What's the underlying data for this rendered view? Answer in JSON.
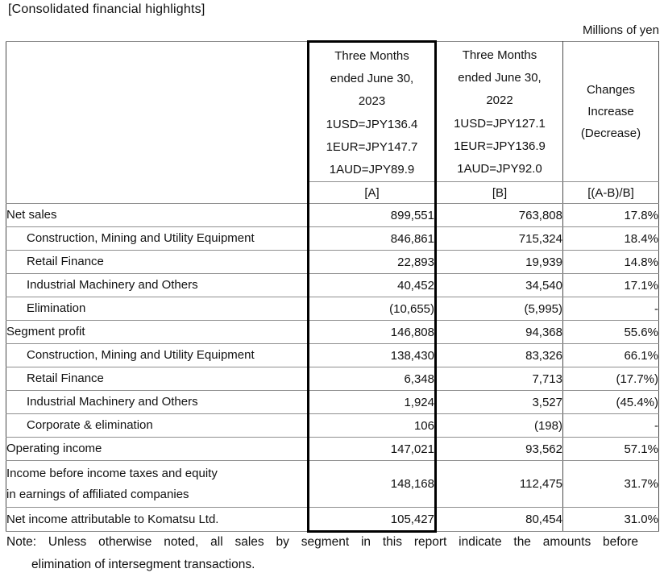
{
  "page": {
    "title": "[Consolidated financial highlights]",
    "unit_label": "Millions of yen"
  },
  "table": {
    "header": {
      "period_a": {
        "lines": [
          "Three Months",
          "ended June 30,",
          "2023",
          "1USD=JPY136.4",
          "1EUR=JPY147.7",
          "1AUD=JPY89.9"
        ],
        "tag": "[A]"
      },
      "period_b": {
        "lines": [
          "Three Months",
          "ended June 30,",
          "2022",
          "1USD=JPY127.1",
          "1EUR=JPY136.9",
          "1AUD=JPY92.0"
        ],
        "tag": "[B]"
      },
      "changes": {
        "lines": [
          "Changes",
          "Increase",
          "(Decrease)"
        ],
        "tag": "[(A-B)/B]"
      }
    },
    "rows": [
      {
        "label": "Net sales",
        "indent": false,
        "two_line": false,
        "a": "899,551",
        "b": "763,808",
        "change": "17.8%"
      },
      {
        "label": "Construction, Mining and Utility Equipment",
        "indent": true,
        "two_line": false,
        "a": "846,861",
        "b": "715,324",
        "change": "18.4%"
      },
      {
        "label": "Retail Finance",
        "indent": true,
        "two_line": false,
        "a": "22,893",
        "b": "19,939",
        "change": "14.8%"
      },
      {
        "label": "Industrial Machinery and Others",
        "indent": true,
        "two_line": false,
        "a": "40,452",
        "b": "34,540",
        "change": "17.1%"
      },
      {
        "label": "Elimination",
        "indent": true,
        "two_line": false,
        "a": "(10,655)",
        "b": "(5,995)",
        "change": "-"
      },
      {
        "label": "Segment profit",
        "indent": false,
        "two_line": false,
        "a": "146,808",
        "b": "94,368",
        "change": "55.6%"
      },
      {
        "label": "Construction, Mining and Utility Equipment",
        "indent": true,
        "two_line": false,
        "a": "138,430",
        "b": "83,326",
        "change": "66.1%"
      },
      {
        "label": "Retail Finance",
        "indent": true,
        "two_line": false,
        "a": "6,348",
        "b": "7,713",
        "change": "(17.7%)"
      },
      {
        "label": "Industrial Machinery and Others",
        "indent": true,
        "two_line": false,
        "a": "1,924",
        "b": "3,527",
        "change": "(45.4%)"
      },
      {
        "label": "Corporate & elimination",
        "indent": true,
        "two_line": false,
        "a": "106",
        "b": "(198)",
        "change": "-"
      },
      {
        "label": "Operating income",
        "indent": false,
        "two_line": false,
        "a": "147,021",
        "b": "93,562",
        "change": "57.1%"
      },
      {
        "label": "Income before income taxes and equity\nin earnings of affiliated companies",
        "indent": false,
        "two_line": true,
        "a": "148,168",
        "b": "112,475",
        "change": "31.7%"
      },
      {
        "label": "Net income attributable to Komatsu Ltd.",
        "indent": false,
        "two_line": false,
        "a": "105,427",
        "b": "80,454",
        "change": "31.0%"
      }
    ]
  },
  "note": {
    "line1": "Note: Unless otherwise noted, all sales by segment in this report indicate the amounts before",
    "line2": "elimination of intersegment transactions."
  }
}
